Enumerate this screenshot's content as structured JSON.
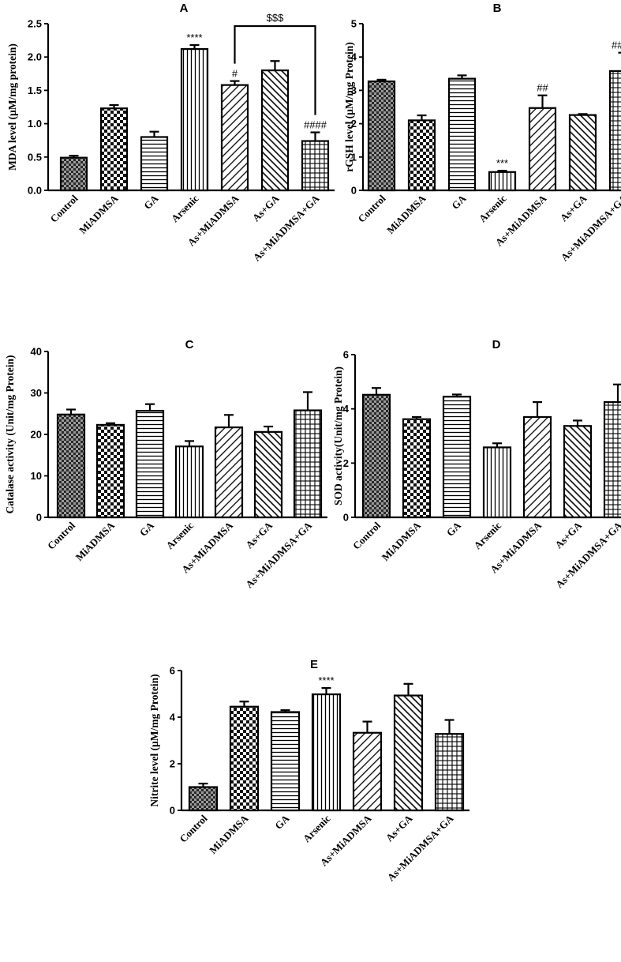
{
  "chart_data": [
    {
      "panel": "A",
      "type": "bar",
      "ylabel": "MDA level (μM/mg protein)",
      "ylim": [
        0,
        2.5
      ],
      "yticks": [
        0.0,
        0.5,
        1.0,
        1.5,
        2.0,
        2.5
      ],
      "ytick_labels": [
        "0.0",
        "0.5",
        "1.0",
        "1.5",
        "2.0",
        "2.5"
      ],
      "categories": [
        "Control",
        "MiADMSA",
        "GA",
        "Arsenic",
        "As+MiADMSA",
        "As+GA",
        "As+MiADMSA+GA"
      ],
      "values": [
        0.49,
        1.23,
        0.8,
        2.12,
        1.58,
        1.8,
        0.74
      ],
      "errors": [
        0.03,
        0.05,
        0.08,
        0.06,
        0.06,
        0.14,
        0.13
      ],
      "annotations": [
        {
          "category": "Arsenic",
          "text": "****"
        },
        {
          "category": "As+MiADMSA",
          "text": "#"
        },
        {
          "category": "As+MiADMSA+GA",
          "text": "####"
        }
      ],
      "bracket": {
        "from": "As+MiADMSA",
        "to": "As+MiADMSA+GA",
        "text": "$$$"
      }
    },
    {
      "panel": "B",
      "type": "bar",
      "ylabel": "rGSH  level (μM/mg Protein)",
      "ylim": [
        0,
        5
      ],
      "yticks": [
        0,
        1,
        2,
        3,
        4,
        5
      ],
      "ytick_labels": [
        "0",
        "1",
        "2",
        "3",
        "4",
        "5"
      ],
      "categories": [
        "Control",
        "MiADMSA",
        "GA",
        "Arsenic",
        "As+MiADMSA",
        "As+GA",
        "As+MiADMSA+GA"
      ],
      "values": [
        3.27,
        2.1,
        3.35,
        0.55,
        2.47,
        2.26,
        3.58
      ],
      "errors": [
        0.05,
        0.15,
        0.1,
        0.04,
        0.38,
        0.03,
        0.55
      ],
      "annotations": [
        {
          "category": "Arsenic",
          "text": "***"
        },
        {
          "category": "As+MiADMSA",
          "text": "##"
        },
        {
          "category": "As+MiADMSA+GA",
          "text": "####"
        }
      ]
    },
    {
      "panel": "C",
      "type": "bar",
      "ylabel": "Catalase activity (Unit/mg Protein)",
      "ylim": [
        0,
        40
      ],
      "yticks": [
        0,
        10,
        20,
        30,
        40
      ],
      "ytick_labels": [
        "0",
        "10",
        "20",
        "30",
        "40"
      ],
      "categories": [
        "Control",
        "MiADMSA",
        "GA",
        "Arsenic",
        "As+MiADMSA",
        "As+GA",
        "As+MiADMSA+GA"
      ],
      "values": [
        24.8,
        22.3,
        25.7,
        17.1,
        21.7,
        20.6,
        25.8
      ],
      "errors": [
        1.2,
        0.4,
        1.6,
        1.3,
        3.0,
        1.3,
        4.4
      ],
      "annotations": []
    },
    {
      "panel": "D",
      "type": "bar",
      "ylabel": "SOD activity(Unit/mg Protein)",
      "ylim": [
        0,
        6
      ],
      "yticks": [
        0,
        2,
        4,
        6
      ],
      "ytick_labels": [
        "0",
        "2",
        "4",
        "6"
      ],
      "categories": [
        "Control",
        "MiADMSA",
        "GA",
        "Arsenic",
        "As+MiADMSA",
        "As+GA",
        "As+MiADMSA+GA"
      ],
      "values": [
        4.52,
        3.62,
        4.45,
        2.58,
        3.7,
        3.37,
        4.25
      ],
      "errors": [
        0.25,
        0.08,
        0.08,
        0.15,
        0.55,
        0.2,
        0.65
      ],
      "annotations": []
    },
    {
      "panel": "E",
      "type": "bar",
      "ylabel": "Nitrite level (μM/mg Protein)",
      "ylim": [
        0,
        6
      ],
      "yticks": [
        0,
        2,
        4,
        6
      ],
      "ytick_labels": [
        "0",
        "2",
        "4",
        "6"
      ],
      "categories": [
        "Control",
        "MiADMSA",
        "GA",
        "Arsenic",
        "As+MiADMSA",
        "As+GA",
        "As+MiADMSA+GA"
      ],
      "values": [
        1.0,
        4.45,
        4.22,
        4.98,
        3.33,
        4.93,
        3.28
      ],
      "errors": [
        0.15,
        0.22,
        0.08,
        0.27,
        0.48,
        0.5,
        0.6
      ],
      "annotations": [
        {
          "category": "Arsenic",
          "text": "****"
        }
      ]
    }
  ],
  "colors": {
    "ink": "#000000",
    "background": "#ffffff",
    "shade": "#6b6b6b"
  },
  "bar_patterns": [
    "dark-checker",
    "checker",
    "horizontal-lines",
    "vertical-lines",
    "diagonal-right",
    "diagonal-left",
    "grid"
  ]
}
